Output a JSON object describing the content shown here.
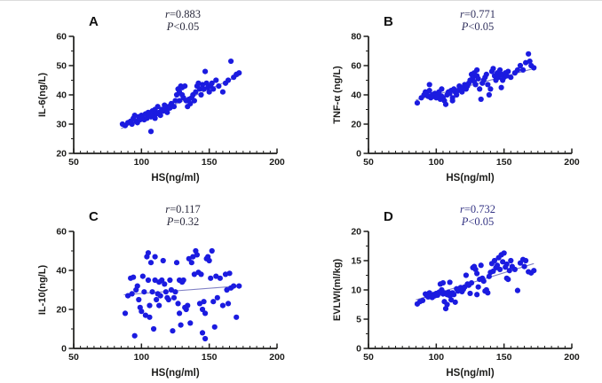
{
  "figure": {
    "background": "#ffffff",
    "dot_color": "#1b1be0",
    "trend_color": "#8080c4",
    "axis_color": "#1d1d1b",
    "tick_label_color": "#1d1d1b",
    "panel_letter_color": "#111111"
  },
  "chart_data": [
    {
      "type": "scatter",
      "panel_label": "A",
      "xlabel": "HS(ng/ml)",
      "ylabel": "IL-6(ng/L)",
      "xlim": [
        50,
        200
      ],
      "xticks": [
        50,
        100,
        150,
        200
      ],
      "x_minor_step": 5,
      "ylim": [
        20,
        60
      ],
      "yticks": [
        20,
        30,
        40,
        50,
        60
      ],
      "grid": false,
      "legend": "none",
      "annotation": {
        "line1": "r=0.883",
        "line2": "P<0.05",
        "color": "#2b2b3e"
      },
      "trend": {
        "x1": 85,
        "y1": 28.5,
        "x2": 172,
        "y2": 46.5
      },
      "points": [
        [
          86,
          30
        ],
        [
          88,
          29.5
        ],
        [
          90,
          30.5
        ],
        [
          92,
          31
        ],
        [
          93,
          30
        ],
        [
          94,
          32
        ],
        [
          95,
          33
        ],
        [
          96,
          31
        ],
        [
          97,
          30.5
        ],
        [
          98,
          32.5
        ],
        [
          99,
          31.5
        ],
        [
          100,
          33
        ],
        [
          101,
          32
        ],
        [
          102,
          31.5
        ],
        [
          103,
          33.5
        ],
        [
          104,
          32
        ],
        [
          105,
          34
        ],
        [
          106,
          33
        ],
        [
          107,
          27.5
        ],
        [
          107,
          32.5
        ],
        [
          108,
          34.5
        ],
        [
          109,
          33
        ],
        [
          110,
          32
        ],
        [
          110,
          35
        ],
        [
          111,
          33.5
        ],
        [
          112,
          36
        ],
        [
          113,
          34
        ],
        [
          114,
          33
        ],
        [
          115,
          35
        ],
        [
          116,
          34.5
        ],
        [
          117,
          36.5
        ],
        [
          118,
          35
        ],
        [
          119,
          34
        ],
        [
          120,
          36
        ],
        [
          121,
          35.5
        ],
        [
          122,
          37
        ],
        [
          124,
          36
        ],
        [
          125,
          38
        ],
        [
          126,
          40
        ],
        [
          127,
          42
        ],
        [
          128,
          41
        ],
        [
          128,
          38
        ],
        [
          129,
          43
        ],
        [
          130,
          42.5
        ],
        [
          130,
          40
        ],
        [
          131,
          39
        ],
        [
          132,
          43
        ],
        [
          133,
          38
        ],
        [
          134,
          36
        ],
        [
          135,
          38.5
        ],
        [
          136,
          37
        ],
        [
          137,
          39
        ],
        [
          138,
          40
        ],
        [
          139,
          38
        ],
        [
          140,
          41
        ],
        [
          141,
          43
        ],
        [
          142,
          44
        ],
        [
          143,
          42
        ],
        [
          144,
          40
        ],
        [
          145,
          43.5
        ],
        [
          146,
          42
        ],
        [
          147,
          48
        ],
        [
          148,
          44
        ],
        [
          149,
          42.5
        ],
        [
          150,
          41
        ],
        [
          151,
          43
        ],
        [
          152,
          44
        ],
        [
          153,
          42
        ],
        [
          155,
          45
        ],
        [
          157,
          43
        ],
        [
          160,
          41
        ],
        [
          162,
          44
        ],
        [
          164,
          45
        ],
        [
          166,
          51.5
        ],
        [
          168,
          46
        ],
        [
          170,
          47
        ],
        [
          172,
          47.5
        ]
      ]
    },
    {
      "type": "scatter",
      "panel_label": "B",
      "xlabel": "HS(ng/ml)",
      "ylabel": "TNF-α (ng/L)",
      "xlim": [
        50,
        200
      ],
      "xticks": [
        50,
        100,
        150,
        200
      ],
      "x_minor_step": 5,
      "ylim": [
        0,
        80
      ],
      "yticks": [
        0,
        20,
        40,
        60,
        80
      ],
      "grid": false,
      "legend": "none",
      "annotation": {
        "line1": "r=0.771",
        "line2": "P<0.05",
        "color": "#32325f"
      },
      "trend": {
        "x1": 85,
        "y1": 36.5,
        "x2": 172,
        "y2": 58
      },
      "points": [
        [
          86,
          34.5
        ],
        [
          89,
          38
        ],
        [
          91,
          40
        ],
        [
          92,
          42
        ],
        [
          93,
          41
        ],
        [
          94,
          39
        ],
        [
          95,
          43
        ],
        [
          95,
          47
        ],
        [
          96,
          38
        ],
        [
          97,
          40
        ],
        [
          98,
          39
        ],
        [
          99,
          41
        ],
        [
          100,
          38
        ],
        [
          101,
          40
        ],
        [
          102,
          42
        ],
        [
          103,
          37
        ],
        [
          104,
          39
        ],
        [
          104,
          44
        ],
        [
          105,
          38
        ],
        [
          106,
          36
        ],
        [
          107,
          33.5
        ],
        [
          108,
          40
        ],
        [
          109,
          42
        ],
        [
          110,
          41
        ],
        [
          111,
          43
        ],
        [
          112,
          38
        ],
        [
          112,
          36
        ],
        [
          113,
          44
        ],
        [
          114,
          42
        ],
        [
          115,
          40
        ],
        [
          116,
          43
        ],
        [
          117,
          46
        ],
        [
          118,
          44
        ],
        [
          119,
          42
        ],
        [
          120,
          45
        ],
        [
          121,
          47
        ],
        [
          122,
          44
        ],
        [
          123,
          46
        ],
        [
          124,
          48
        ],
        [
          125,
          50
        ],
        [
          126,
          54
        ],
        [
          127,
          52
        ],
        [
          128,
          55
        ],
        [
          128,
          49
        ],
        [
          129,
          47
        ],
        [
          130,
          53
        ],
        [
          130,
          57
        ],
        [
          131,
          51
        ],
        [
          132,
          44
        ],
        [
          133,
          37
        ],
        [
          134,
          48
        ],
        [
          135,
          50
        ],
        [
          136,
          52
        ],
        [
          137,
          54
        ],
        [
          138,
          47
        ],
        [
          139,
          40
        ],
        [
          140,
          44
        ],
        [
          141,
          56
        ],
        [
          142,
          58
        ],
        [
          143,
          53
        ],
        [
          144,
          50
        ],
        [
          145,
          55
        ],
        [
          146,
          52
        ],
        [
          147,
          57
        ],
        [
          148,
          54
        ],
        [
          148,
          45
        ],
        [
          149,
          50
        ],
        [
          150,
          52
        ],
        [
          151,
          55
        ],
        [
          152,
          53
        ],
        [
          153,
          56
        ],
        [
          155,
          52
        ],
        [
          158,
          55
        ],
        [
          160,
          57
        ],
        [
          162,
          60
        ],
        [
          164,
          57
        ],
        [
          166,
          62
        ],
        [
          168,
          68
        ],
        [
          169,
          63
        ],
        [
          170,
          60
        ],
        [
          172,
          58.5
        ]
      ]
    },
    {
      "type": "scatter",
      "panel_label": "C",
      "xlabel": "HS(ng/ml)",
      "ylabel": "IL-10(ng/L)",
      "xlim": [
        50,
        200
      ],
      "xticks": [
        50,
        100,
        150,
        200
      ],
      "x_minor_step": 5,
      "ylim": [
        0,
        60
      ],
      "yticks": [
        0,
        20,
        40,
        60
      ],
      "grid": false,
      "legend": "none",
      "annotation": {
        "line1": "r=0.117",
        "line2": "P=0.32",
        "color": "#2b2b3e"
      },
      "trend": {
        "x1": 87,
        "y1": 27.5,
        "x2": 172,
        "y2": 32
      },
      "points": [
        [
          88,
          18
        ],
        [
          90,
          27
        ],
        [
          92,
          36
        ],
        [
          93,
          28
        ],
        [
          94,
          36.5
        ],
        [
          95,
          6.5
        ],
        [
          96,
          30
        ],
        [
          97,
          32
        ],
        [
          98,
          25
        ],
        [
          99,
          21
        ],
        [
          100,
          19
        ],
        [
          101,
          37
        ],
        [
          102,
          29
        ],
        [
          103,
          17
        ],
        [
          104,
          47
        ],
        [
          105,
          49
        ],
        [
          105,
          35
        ],
        [
          106,
          22
        ],
        [
          106,
          16
        ],
        [
          107,
          44
        ],
        [
          108,
          29
        ],
        [
          109,
          10
        ],
        [
          110,
          47
        ],
        [
          110,
          35
        ],
        [
          111,
          25
        ],
        [
          112,
          28
        ],
        [
          113,
          34
        ],
        [
          113,
          22
        ],
        [
          114,
          27
        ],
        [
          115,
          35
        ],
        [
          116,
          45
        ],
        [
          117,
          33
        ],
        [
          118,
          29
        ],
        [
          119,
          26
        ],
        [
          120,
          25
        ],
        [
          121,
          35
        ],
        [
          122,
          30
        ],
        [
          123,
          9
        ],
        [
          124,
          26
        ],
        [
          125,
          29
        ],
        [
          126,
          44
        ],
        [
          127,
          23
        ],
        [
          128,
          35
        ],
        [
          128,
          18
        ],
        [
          129,
          12
        ],
        [
          130,
          34
        ],
        [
          131,
          35
        ],
        [
          132,
          21
        ],
        [
          133,
          20
        ],
        [
          134,
          22
        ],
        [
          135,
          46
        ],
        [
          136,
          13
        ],
        [
          137,
          44
        ],
        [
          138,
          47
        ],
        [
          139,
          38
        ],
        [
          140,
          50
        ],
        [
          141,
          48
        ],
        [
          142,
          39
        ],
        [
          143,
          23
        ],
        [
          144,
          38
        ],
        [
          145,
          8
        ],
        [
          145,
          20
        ],
        [
          146,
          24
        ],
        [
          147,
          5
        ],
        [
          147,
          18
        ],
        [
          148,
          46
        ],
        [
          149,
          47
        ],
        [
          150,
          45
        ],
        [
          151,
          36
        ],
        [
          152,
          50
        ],
        [
          153,
          24
        ],
        [
          154,
          11
        ],
        [
          155,
          37
        ],
        [
          156,
          26
        ],
        [
          158,
          36
        ],
        [
          160,
          22
        ],
        [
          162,
          38
        ],
        [
          163,
          30
        ],
        [
          164,
          23
        ],
        [
          165,
          38.5
        ],
        [
          166,
          31
        ],
        [
          168,
          32
        ],
        [
          170,
          16
        ],
        [
          172,
          32
        ]
      ]
    },
    {
      "type": "scatter",
      "panel_label": "D",
      "xlabel": "HS(ng/ml)",
      "ylabel": "EVLWI(ml/kg)",
      "xlim": [
        50,
        200
      ],
      "xticks": [
        50,
        100,
        150,
        200
      ],
      "x_minor_step": 5,
      "ylim": [
        0,
        20
      ],
      "yticks": [
        0,
        5,
        10,
        15,
        20
      ],
      "grid": false,
      "legend": "none",
      "annotation": {
        "line1": "r=0.732",
        "line2": "P<0.05",
        "color": "#343484"
      },
      "trend": {
        "x1": 85,
        "y1": 8.3,
        "x2": 172,
        "y2": 14.5
      },
      "points": [
        [
          86,
          7.6
        ],
        [
          88,
          8
        ],
        [
          90,
          8.2
        ],
        [
          92,
          9.3
        ],
        [
          93,
          9
        ],
        [
          94,
          8.8
        ],
        [
          95,
          9.5
        ],
        [
          96,
          9
        ],
        [
          97,
          8.7
        ],
        [
          98,
          9.2
        ],
        [
          99,
          9
        ],
        [
          100,
          9.4
        ],
        [
          101,
          9.1
        ],
        [
          102,
          9.6
        ],
        [
          103,
          11
        ],
        [
          104,
          10
        ],
        [
          105,
          9.3
        ],
        [
          105,
          11.2
        ],
        [
          106,
          9.5
        ],
        [
          106,
          8
        ],
        [
          107,
          6.8
        ],
        [
          107,
          9.4
        ],
        [
          108,
          9.2
        ],
        [
          108,
          7.5
        ],
        [
          109,
          9.6
        ],
        [
          110,
          11.3
        ],
        [
          110,
          9
        ],
        [
          111,
          8.3
        ],
        [
          112,
          9.5
        ],
        [
          113,
          9.2
        ],
        [
          114,
          7.9
        ],
        [
          115,
          10.2
        ],
        [
          116,
          9.8
        ],
        [
          117,
          10
        ],
        [
          118,
          10.4
        ],
        [
          119,
          9.7
        ],
        [
          120,
          10.1
        ],
        [
          121,
          10.5
        ],
        [
          122,
          12.5
        ],
        [
          123,
          11
        ],
        [
          124,
          10.8
        ],
        [
          125,
          9.4
        ],
        [
          126,
          11.2
        ],
        [
          127,
          13.8
        ],
        [
          128,
          14
        ],
        [
          129,
          13.5
        ],
        [
          130,
          12.8
        ],
        [
          130,
          9.2
        ],
        [
          131,
          10.5
        ],
        [
          132,
          11.8
        ],
        [
          133,
          14.2
        ],
        [
          134,
          12
        ],
        [
          135,
          11.5
        ],
        [
          136,
          9.8
        ],
        [
          137,
          10
        ],
        [
          138,
          9.5
        ],
        [
          139,
          12.3
        ],
        [
          140,
          13
        ],
        [
          141,
          14.5
        ],
        [
          142,
          13.2
        ],
        [
          143,
          15
        ],
        [
          144,
          13.8
        ],
        [
          145,
          14.2
        ],
        [
          146,
          15.5
        ],
        [
          147,
          13.5
        ],
        [
          148,
          16
        ],
        [
          149,
          14.8
        ],
        [
          150,
          16.3
        ],
        [
          151,
          13.9
        ],
        [
          152,
          14.4
        ],
        [
          152,
          12
        ],
        [
          153,
          11.8
        ],
        [
          154,
          13.3
        ],
        [
          155,
          15
        ],
        [
          156,
          14
        ],
        [
          158,
          13.5
        ],
        [
          160,
          9.9
        ],
        [
          162,
          14.6
        ],
        [
          164,
          15.2
        ],
        [
          165,
          14
        ],
        [
          166,
          15
        ],
        [
          168,
          13.1
        ],
        [
          170,
          12.9
        ],
        [
          172,
          13.3
        ]
      ]
    }
  ]
}
